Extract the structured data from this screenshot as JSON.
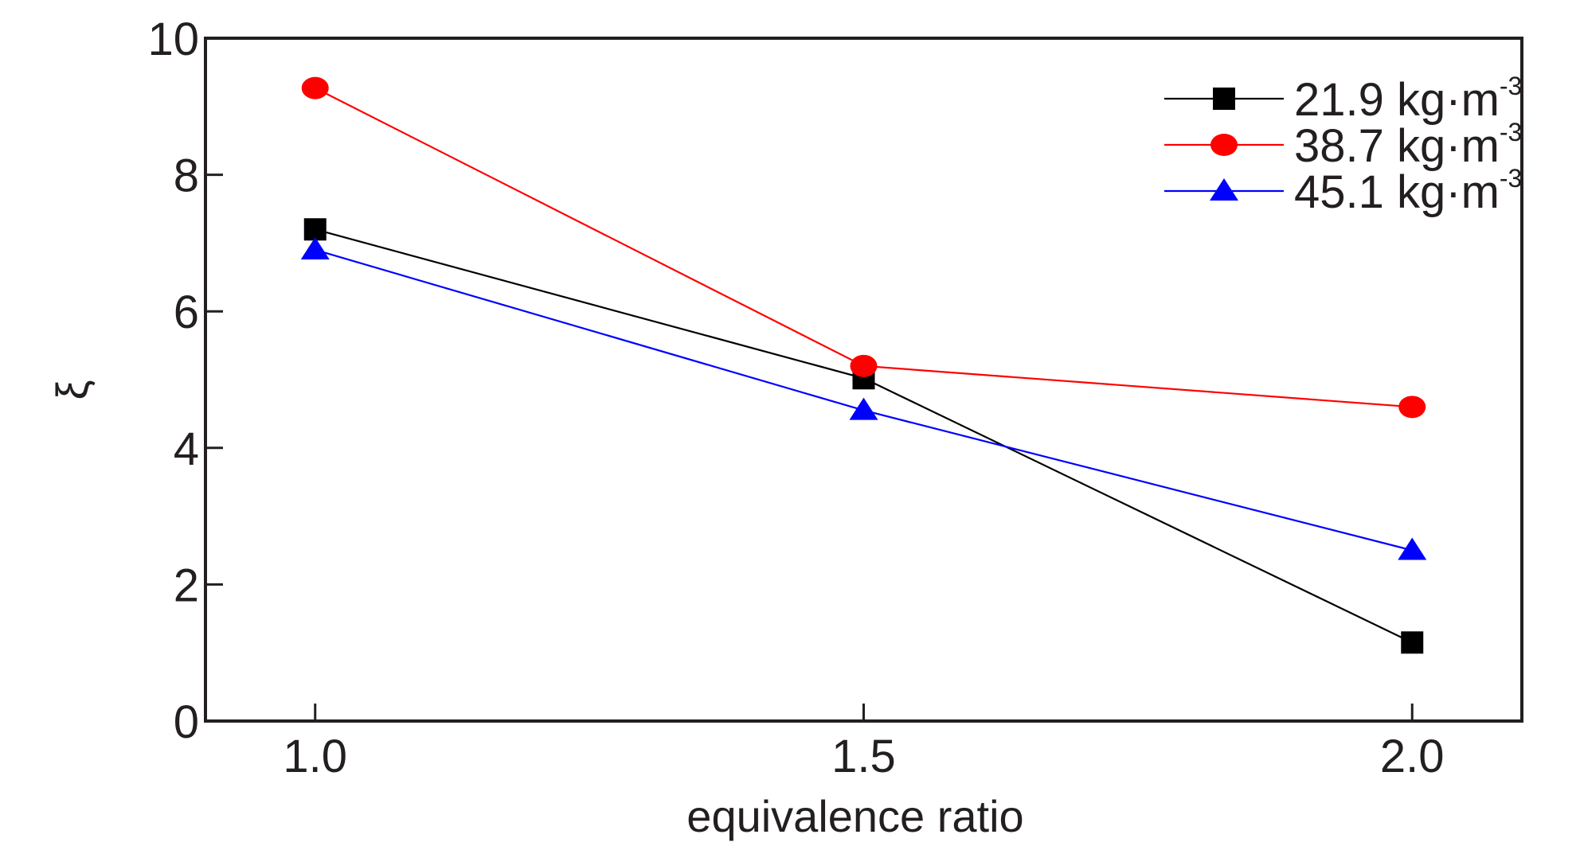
{
  "chart_data": {
    "type": "line",
    "title": "",
    "xlabel": "equivalence ratio",
    "ylabel": "ξ",
    "x": [
      1.0,
      1.5,
      2.0
    ],
    "x_tick_labels": [
      "1.0",
      "1.5",
      "2.0"
    ],
    "xlim": [
      0.9,
      2.1
    ],
    "ylim": [
      0,
      10
    ],
    "y_ticks": [
      0,
      2,
      4,
      6,
      8,
      10
    ],
    "y_tick_labels": [
      "0",
      "2",
      "4",
      "6",
      "8",
      "10"
    ],
    "grid": false,
    "legend_position": "top-right",
    "series": [
      {
        "name": "21.9 kg·m",
        "unit_exponent": "-3",
        "color": "#000000",
        "marker": "square",
        "values": [
          7.2,
          5.02,
          1.15
        ]
      },
      {
        "name": "38.7 kg·m",
        "unit_exponent": "-3",
        "color": "#ff0000",
        "marker": "circle",
        "values": [
          9.27,
          5.2,
          4.6
        ]
      },
      {
        "name": "45.1 kg·m",
        "unit_exponent": "-3",
        "color": "#0000ff",
        "marker": "triangle",
        "values": [
          6.9,
          4.55,
          2.5
        ]
      }
    ]
  }
}
